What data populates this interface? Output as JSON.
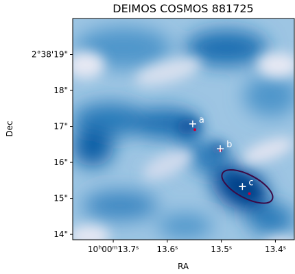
{
  "chart_data": {
    "type": "heatmap",
    "title": "DEIMOS COSMOS 881725",
    "xlabel": "RA",
    "ylabel": "Dec",
    "colormap": "Blues",
    "x_ticks": [
      {
        "value": 13.7,
        "label_main": "10",
        "sup_h": "h",
        "label_mid": "00",
        "sup_m": "m",
        "label_end": "13.7",
        "sup_s": "s"
      },
      {
        "value": 13.6,
        "label_main": "13.6",
        "sup_s": "s"
      },
      {
        "value": 13.5,
        "label_main": "13.5",
        "sup_s": "s"
      },
      {
        "value": 13.4,
        "label_main": "13.4",
        "sup_s": "s"
      }
    ],
    "y_ticks": [
      {
        "value": 19,
        "label": "2°38'19\""
      },
      {
        "value": 18,
        "label": "18\""
      },
      {
        "value": 17,
        "label": "17\""
      },
      {
        "value": 16,
        "label": "16\""
      },
      {
        "value": 15,
        "label": "15\""
      },
      {
        "value": 14,
        "label": "14\""
      }
    ],
    "xlim": [
      13.775,
      13.365
    ],
    "ylim": [
      13.85,
      20.0
    ],
    "grid": false,
    "markers": [
      {
        "label": "a",
        "ra": 13.553,
        "dec": 17.07
      },
      {
        "label": "b",
        "ra": 13.502,
        "dec": 16.38
      },
      {
        "label": "c",
        "ra": 13.461,
        "dec": 15.33
      }
    ],
    "red_points": [
      {
        "ra": 13.549,
        "dec": 16.91
      },
      {
        "ra": 13.502,
        "dec": 16.33
      },
      {
        "ra": 13.448,
        "dec": 15.13
      }
    ],
    "contour": {
      "color": "#3b0a45",
      "center_ra": 13.452,
      "center_dec": 15.33,
      "semi_ra": 0.052,
      "semi_dec": 0.32,
      "angle_deg": 28
    },
    "colors": {
      "dark": "#08519c",
      "light": "#e6e8f3",
      "marker": "#ffffff",
      "point": "#c8003a"
    }
  }
}
